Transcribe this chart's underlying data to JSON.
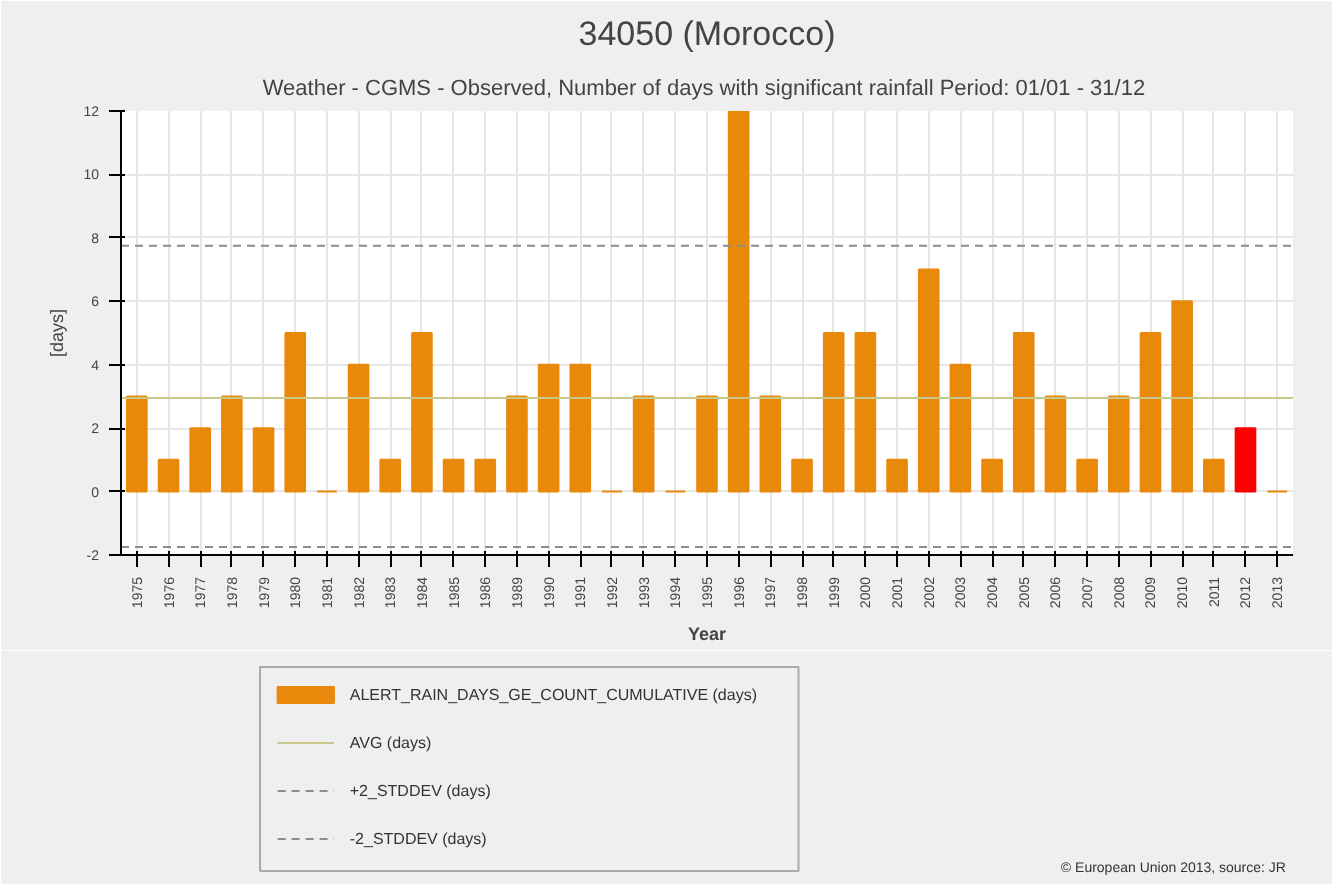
{
  "chart_data": {
    "type": "bar",
    "title": "34050 (Morocco)",
    "subtitle": "Weather - CGMS - Observed, Number of days with significant rainfall  Period: 01/01 - 31/12",
    "xlabel": "Year",
    "ylabel": "[days]",
    "categories": [
      "1975",
      "1976",
      "1977",
      "1978",
      "1979",
      "1980",
      "1981",
      "1982",
      "1983",
      "1984",
      "1985",
      "1986",
      "1989",
      "1990",
      "1991",
      "1992",
      "1993",
      "1994",
      "1995",
      "1996",
      "1997",
      "1998",
      "1999",
      "2000",
      "2001",
      "2002",
      "2003",
      "2004",
      "2005",
      "2006",
      "2007",
      "2008",
      "2009",
      "2010",
      "2011",
      "2012",
      "2013"
    ],
    "series": [
      {
        "name": "ALERT_RAIN_DAYS_GE_COUNT_CUMULATIVE (days)",
        "color": "#e8890c",
        "colors": [
          "#e8890c",
          "#e8890c",
          "#e8890c",
          "#e8890c",
          "#e8890c",
          "#e8890c",
          "#e8890c",
          "#e8890c",
          "#e8890c",
          "#e8890c",
          "#e8890c",
          "#e8890c",
          "#e8890c",
          "#e8890c",
          "#e8890c",
          "#e8890c",
          "#e8890c",
          "#e8890c",
          "#e8890c",
          "#e8890c",
          "#e8890c",
          "#e8890c",
          "#e8890c",
          "#e8890c",
          "#e8890c",
          "#e8890c",
          "#e8890c",
          "#e8890c",
          "#e8890c",
          "#e8890c",
          "#e8890c",
          "#e8890c",
          "#e8890c",
          "#e8890c",
          "#e8890c",
          "#ff0000",
          "#e8890c"
        ],
        "values": [
          3,
          1,
          2,
          3,
          2,
          5,
          0,
          4,
          1,
          5,
          1,
          1,
          3,
          4,
          4,
          0,
          3,
          0,
          3,
          12,
          3,
          1,
          5,
          5,
          1,
          7,
          4,
          1,
          5,
          3,
          1,
          3,
          5,
          6,
          1,
          2,
          0
        ]
      }
    ],
    "ref_lines": [
      {
        "axis": "y",
        "value": 2.95,
        "label": "AVG (days)",
        "color": "#c8c88a",
        "line_style": "solid"
      },
      {
        "axis": "y",
        "value": 7.75,
        "label": "+2_STDDEV (days)",
        "color": "#8c8c8c",
        "line_style": "dashed"
      },
      {
        "axis": "y",
        "value": -1.75,
        "label": "-2_STDDEV (days)",
        "color": "#8c8c8c",
        "line_style": "dashed"
      }
    ],
    "ylim": [
      -2,
      12
    ],
    "yticks": [
      -2,
      0,
      2,
      4,
      6,
      8,
      10,
      12
    ],
    "grid": true,
    "legend": "bottom",
    "annotations": [
      "© European Union 2013, source: JR"
    ]
  }
}
